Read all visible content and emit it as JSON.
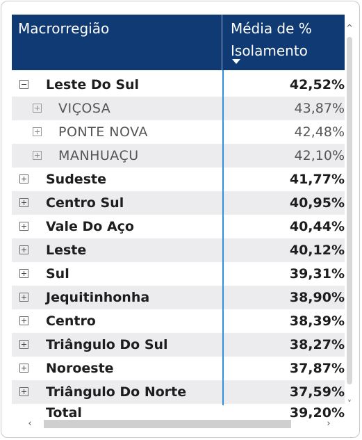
{
  "table": {
    "col1_header": "Macrorregião",
    "col2_header_line1": "Média de %",
    "col2_header_line2": "Isolamento",
    "rows": [
      {
        "label": "Leste Do Sul",
        "value": "42,52%",
        "level": 0,
        "expanded": true
      },
      {
        "label": "VIÇOSA",
        "value": "43,87%",
        "level": 1,
        "expanded": false
      },
      {
        "label": "PONTE NOVA",
        "value": "42,48%",
        "level": 1,
        "expanded": false
      },
      {
        "label": "MANHUAÇU",
        "value": "42,10%",
        "level": 1,
        "expanded": false
      },
      {
        "label": "Sudeste",
        "value": "41,77%",
        "level": 0,
        "expanded": false
      },
      {
        "label": "Centro Sul",
        "value": "40,95%",
        "level": 0,
        "expanded": false
      },
      {
        "label": "Vale Do Aço",
        "value": "40,44%",
        "level": 0,
        "expanded": false
      },
      {
        "label": "Leste",
        "value": "40,12%",
        "level": 0,
        "expanded": false
      },
      {
        "label": "Sul",
        "value": "39,31%",
        "level": 0,
        "expanded": false
      },
      {
        "label": "Jequitinhonha",
        "value": "38,90%",
        "level": 0,
        "expanded": false
      },
      {
        "label": "Centro",
        "value": "38,39%",
        "level": 0,
        "expanded": false
      },
      {
        "label": "Triângulo Do Sul",
        "value": "38,27%",
        "level": 0,
        "expanded": false
      },
      {
        "label": "Noroeste",
        "value": "37,87%",
        "level": 0,
        "expanded": false
      },
      {
        "label": "Triângulo Do Norte",
        "value": "37,59%",
        "level": 0,
        "expanded": false
      }
    ],
    "total_label": "Total",
    "total_value": "39,20%"
  },
  "colors": {
    "header_bg": "#0f3a73",
    "column_divider": "#2f8fe0",
    "row_shade": "#ececee"
  },
  "icons": {
    "collapse": "minus-box-icon",
    "expand": "plus-box-icon",
    "sort": "sort-desc-icon"
  }
}
